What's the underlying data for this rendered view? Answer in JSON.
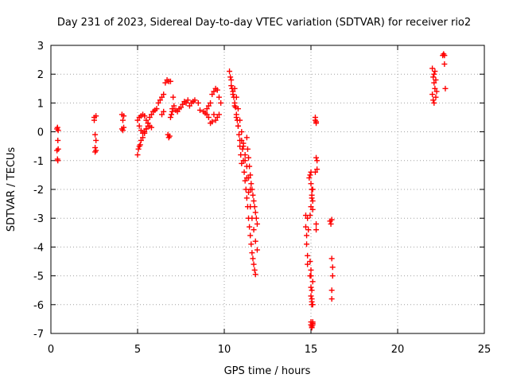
{
  "chart_data": {
    "type": "scatter",
    "title": "Day 231 of 2023, Sidereal Day-to-day VTEC variation (SDTVAR) for receiver rio2",
    "xlabel": "GPS time / hours",
    "ylabel": "SDTVAR / TECUs",
    "xlim": [
      0,
      25
    ],
    "ylim": [
      -7,
      3
    ],
    "xticks": [
      0,
      5,
      10,
      15,
      20,
      25
    ],
    "xtick_labels": [
      "0",
      "5",
      "10",
      "15",
      "20",
      "25"
    ],
    "yticks": [
      -7,
      -6,
      -5,
      -4,
      -3,
      -2,
      -1,
      0,
      1,
      2,
      3
    ],
    "ytick_labels": [
      "-7",
      "-6",
      "-5",
      "-4",
      "-3",
      "-2",
      "-1",
      "0",
      "1",
      "2",
      "3"
    ],
    "grid": true,
    "marker": "+",
    "color": "#ff0000",
    "series": [
      {
        "name": "rio2",
        "x": [
          0.35,
          0.35,
          0.38,
          0.38,
          0.4,
          0.4,
          0.42,
          0.42,
          2.5,
          2.5,
          2.55,
          2.55,
          2.55,
          2.6,
          2.6,
          2.6,
          4.1,
          4.1,
          4.15,
          4.15,
          4.2,
          4.2,
          5.0,
          5.05,
          5.1,
          5.15,
          5.2,
          5.3,
          5.4,
          5.5,
          5.6,
          5.7,
          5.8,
          5.9,
          5.0,
          5.1,
          5.2,
          5.3,
          5.4,
          5.5,
          5.6,
          5.7,
          5.8,
          5.1,
          5.2,
          5.3,
          5.4,
          5.5,
          5.6,
          5.9,
          6.0,
          6.1,
          6.2,
          6.3,
          6.4,
          6.5,
          6.4,
          6.5,
          6.6,
          6.7,
          6.8,
          6.9,
          6.75,
          6.8,
          6.85,
          6.9,
          6.95,
          7.0,
          7.0,
          7.05,
          7.1,
          7.2,
          7.3,
          7.4,
          7.5,
          7.6,
          7.7,
          7.8,
          7.9,
          8.0,
          8.1,
          8.2,
          8.3,
          8.5,
          8.6,
          8.8,
          8.9,
          9.0,
          9.1,
          9.2,
          9.3,
          9.4,
          9.5,
          9.6,
          9.7,
          9.8,
          9.0,
          9.1,
          9.2,
          9.3,
          9.4,
          9.5,
          9.6,
          9.7,
          10.3,
          10.35,
          10.4,
          10.45,
          10.5,
          10.55,
          10.6,
          10.65,
          10.7,
          10.75,
          10.8,
          10.85,
          10.9,
          10.95,
          11.0,
          10.4,
          10.5,
          10.6,
          10.7,
          10.8,
          10.9,
          11.0,
          11.05,
          11.1,
          11.15,
          11.2,
          11.25,
          11.3,
          11.35,
          11.4,
          11.45,
          11.5,
          11.55,
          11.6,
          11.65,
          11.7,
          11.75,
          11.8,
          11.1,
          11.2,
          11.3,
          11.4,
          11.5,
          11.6,
          11.7,
          11.8,
          11.9,
          11.3,
          11.35,
          11.4,
          11.45,
          11.5,
          11.55,
          11.6,
          11.65,
          11.7,
          11.75,
          11.8,
          11.85,
          11.9,
          10.6,
          10.7,
          10.8,
          10.9,
          11.0,
          11.1,
          11.2,
          11.3,
          11.4,
          11.5,
          14.7,
          14.7,
          14.75,
          14.75,
          14.8,
          14.8,
          14.8,
          14.85,
          14.9,
          14.95,
          15.0,
          15.0,
          15.05,
          15.05,
          15.1,
          15.1,
          14.95,
          15.0,
          15.0,
          15.05,
          15.05,
          15.1,
          15.0,
          15.0,
          15.05,
          15.05,
          15.1,
          15.1,
          15.1,
          14.95,
          15.0,
          15.0,
          15.05,
          15.05,
          15.1,
          14.95,
          15.0,
          15.05,
          15.1,
          15.25,
          15.25,
          15.3,
          15.3,
          15.3,
          15.35,
          15.35,
          15.3,
          15.3,
          15.25,
          16.1,
          16.15,
          16.2,
          16.2,
          16.25,
          16.25,
          16.2,
          16.2,
          22.0,
          22.0,
          22.05,
          22.05,
          22.1,
          22.1,
          22.15,
          22.15,
          22.2,
          22.2,
          22.25,
          22.1,
          22.6,
          22.65,
          22.7,
          22.7,
          22.75
        ],
        "y": [
          0.1,
          -0.65,
          0.15,
          -0.95,
          -0.3,
          -1.0,
          0.05,
          -0.6,
          0.5,
          0.4,
          -0.1,
          -0.55,
          -0.7,
          0.55,
          -0.3,
          -0.65,
          0.6,
          0.1,
          0.4,
          0.05,
          0.55,
          0.15,
          -0.8,
          -0.6,
          -0.5,
          -0.45,
          -0.3,
          -0.2,
          -0.05,
          0.1,
          0.3,
          0.5,
          0.6,
          0.7,
          0.4,
          0.5,
          0.55,
          0.6,
          0.55,
          0.4,
          0.3,
          0.2,
          0.15,
          0.2,
          0.05,
          -0.05,
          0.0,
          0.1,
          0.2,
          0.7,
          0.75,
          0.8,
          1.0,
          1.1,
          1.2,
          1.3,
          0.6,
          0.7,
          1.7,
          1.8,
          1.75,
          1.75,
          -0.1,
          -0.2,
          -0.15,
          0.5,
          0.6,
          0.7,
          0.8,
          1.2,
          0.9,
          0.75,
          0.7,
          0.8,
          0.85,
          0.95,
          1.05,
          1.0,
          1.1,
          0.9,
          1.0,
          1.05,
          1.1,
          1.0,
          0.75,
          0.7,
          0.65,
          0.8,
          0.9,
          1.0,
          1.3,
          1.4,
          1.5,
          1.45,
          1.2,
          1.0,
          0.6,
          0.5,
          0.3,
          0.35,
          0.6,
          0.4,
          0.5,
          0.6,
          2.1,
          1.9,
          1.8,
          1.5,
          1.4,
          1.2,
          1.0,
          0.85,
          0.6,
          0.4,
          0.2,
          -0.1,
          -0.5,
          -0.8,
          -1.1,
          1.6,
          1.3,
          0.9,
          0.5,
          0.2,
          -0.3,
          -0.3,
          -0.6,
          -1.0,
          -1.4,
          -1.7,
          -2.0,
          -2.3,
          -2.6,
          -3.0,
          -3.3,
          -3.6,
          -3.9,
          -4.2,
          -4.4,
          -4.6,
          -4.8,
          -4.95,
          -0.5,
          -1.0,
          -1.6,
          -2.1,
          -2.6,
          -3.0,
          -3.4,
          -3.8,
          -4.1,
          -0.2,
          -0.6,
          -0.9,
          -1.2,
          -1.5,
          -1.8,
          -2.0,
          -2.2,
          -2.4,
          -2.6,
          -2.8,
          -3.0,
          -3.2,
          1.5,
          1.2,
          0.8,
          0.4,
          0.0,
          -0.4,
          -0.8,
          -1.2,
          -1.6,
          -2.0,
          -2.9,
          -3.3,
          -3.6,
          -3.9,
          -4.3,
          -4.6,
          -3.0,
          -3.4,
          -1.6,
          -1.5,
          -1.4,
          -1.8,
          -2.0,
          -2.2,
          -2.4,
          -2.7,
          -5.0,
          -5.4,
          -5.7,
          -5.9,
          -6.0,
          -5.2,
          -6.6,
          -6.7,
          -6.75,
          -6.8,
          -6.7,
          -6.65,
          -6.6,
          -4.5,
          -4.8,
          -5.0,
          -5.5,
          -5.8,
          -6.0,
          -2.9,
          -2.6,
          -2.3,
          -2.0,
          0.5,
          0.4,
          0.35,
          0.3,
          -0.9,
          -1.0,
          -1.3,
          -3.2,
          -3.4,
          -1.4,
          -3.1,
          -3.2,
          -3.05,
          -4.4,
          -4.7,
          -5.0,
          -5.5,
          -5.8,
          2.2,
          1.3,
          1.1,
          1.9,
          1.0,
          1.7,
          2.1,
          1.5,
          1.8,
          1.2,
          1.4,
          2.0,
          2.65,
          2.7,
          2.65,
          2.35,
          1.5
        ]
      }
    ]
  }
}
